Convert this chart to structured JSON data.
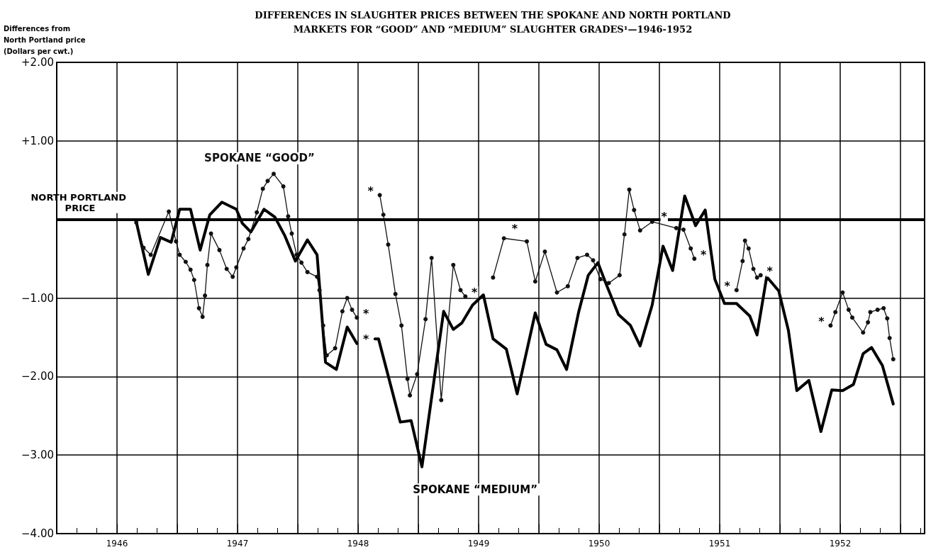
{
  "chart_data": {
    "type": "line",
    "title": "DIFFERENCES IN SLAUGHTER PRICES BETWEEN THE SPOKANE AND NORTH PORTLAND\nMARKETS FOR “GOOD” AND “MEDIUM” SLAUGHTER GRADES¹—1946-1952",
    "ylabel": "Differences from\nNorth Portland price\n(Dollars per cwt.)",
    "xlim": [
      1946,
      1953.2
    ],
    "xticks": [
      {
        "value": 1946.5,
        "label": "1946"
      },
      {
        "value": 1947,
        "label": null
      },
      {
        "value": 1947.5,
        "label": "1947"
      },
      {
        "value": 1948,
        "label": null
      },
      {
        "value": 1948.5,
        "label": "1948"
      },
      {
        "value": 1949,
        "label": null
      },
      {
        "value": 1949.5,
        "label": "1949"
      },
      {
        "value": 1950,
        "label": null
      },
      {
        "value": 1950.5,
        "label": "1950"
      },
      {
        "value": 1951,
        "label": null
      },
      {
        "value": 1951.5,
        "label": "1951"
      },
      {
        "value": 1952,
        "label": null
      },
      {
        "value": 1952.5,
        "label": "1952"
      },
      {
        "value": 1953,
        "label": null
      }
    ],
    "ylim": [
      -4,
      2
    ],
    "yticks": [
      {
        "value": -4,
        "label": "−4.00"
      },
      {
        "value": -3,
        "label": "−3.00"
      },
      {
        "value": -2,
        "label": "−2.00"
      },
      {
        "value": -1,
        "label": "−1.00"
      },
      {
        "value": 1,
        "label": "+1.00"
      },
      {
        "value": 2,
        "label": "+2.00"
      }
    ],
    "grid": true,
    "legend": false,
    "ref_lines": [
      {
        "axis": "y",
        "value": 0,
        "label": "NORTH PORTLAND PRICE",
        "color": "#000000"
      }
    ],
    "series": [
      {
        "name": "SPOKANE “GOOD”",
        "color": "#111111",
        "marker": "circle",
        "line_style": "solid",
        "x": [
          1946.66,
          1946.72,
          1946.78,
          1946.93,
          1946.99,
          1947.02,
          1947.07,
          1947.11,
          1947.14,
          1947.18,
          1947.21,
          1947.23,
          1947.25,
          1947.28,
          1947.35,
          1947.41,
          1947.46,
          1947.49,
          1947.55,
          1947.59,
          1947.66,
          1947.71,
          1947.75,
          1947.8,
          1947.88,
          1947.92,
          1947.95,
          1947.99,
          1948.03,
          1948.08,
          1948.16,
          1948.18,
          1948.21,
          1948.24,
          1948.31,
          1948.37,
          1948.41,
          1948.45,
          1948.49,
          1948.55,
          1948.68,
          1948.71,
          1948.75,
          1948.81,
          1948.86,
          1948.91,
          1948.93,
          1948.99,
          1949.06,
          1949.11,
          1949.19,
          1949.29,
          1949.35,
          1949.39,
          1949.45,
          1949.62,
          1949.71,
          1949.9,
          1949.97,
          1950.05,
          1950.15,
          1950.24,
          1950.32,
          1950.4,
          1950.45,
          1950.51,
          1950.58,
          1950.67,
          1950.71,
          1950.75,
          1950.79,
          1950.84,
          1950.94,
          1951.14,
          1951.2,
          1951.26,
          1951.29,
          1951.38,
          1951.64,
          1951.69,
          1951.71,
          1951.74,
          1951.78,
          1951.81,
          1951.84,
          1952,
          1952.42,
          1952.46,
          1952.52,
          1952.57,
          1952.6,
          1952.69,
          1952.73,
          1952.75,
          1952.81,
          1952.86,
          1952.89,
          1952.91,
          1952.94
        ],
        "values": [
          -0.04,
          -0.36,
          -0.45,
          0.1,
          -0.28,
          -0.45,
          -0.54,
          -0.64,
          -0.77,
          -1.13,
          -1.24,
          -0.97,
          -0.58,
          -0.18,
          -0.39,
          -0.63,
          -0.73,
          -0.61,
          -0.37,
          -0.25,
          0.09,
          0.39,
          0.49,
          0.58,
          0.42,
          0.04,
          -0.18,
          -0.45,
          -0.55,
          -0.67,
          -0.73,
          -0.9,
          -1.35,
          -1.73,
          -1.64,
          -1.17,
          -1,
          -1.15,
          -1.25,
          null,
          0.31,
          0.06,
          -0.32,
          -0.95,
          -1.35,
          -2.03,
          -2.24,
          -1.97,
          -1.27,
          -0.49,
          -2.3,
          -0.58,
          -0.9,
          -0.98,
          null,
          -0.74,
          -0.24,
          -0.28,
          -0.79,
          -0.41,
          -0.93,
          -0.85,
          -0.49,
          -0.45,
          -0.52,
          -0.76,
          -0.81,
          -0.71,
          -0.19,
          0.38,
          0.12,
          -0.14,
          -0.03,
          -0.11,
          -0.13,
          -0.37,
          -0.5,
          null,
          -0.9,
          -0.53,
          -0.27,
          -0.37,
          -0.63,
          -0.74,
          -0.71,
          null,
          -1.35,
          -1.18,
          -0.93,
          -1.15,
          -1.25,
          -1.44,
          -1.31,
          -1.18,
          -1.15,
          -1.13,
          -1.26,
          -1.51,
          -1.78
        ]
      },
      {
        "name": "SPOKANE “MEDIUM”",
        "color": "#000000",
        "marker": "none",
        "line_style": "solid",
        "x": [
          1946.66,
          1946.76,
          1946.86,
          1946.95,
          1947.02,
          1947.11,
          1947.19,
          1947.27,
          1947.37,
          1947.49,
          1947.54,
          1947.61,
          1947.72,
          1947.81,
          1947.89,
          1947.98,
          1948.08,
          1948.16,
          1948.23,
          1948.32,
          1948.41,
          1948.49,
          1948.55,
          1948.64,
          1948.67,
          1948.85,
          1948.94,
          1949.03,
          1949.21,
          1949.29,
          1949.36,
          1949.45,
          1949.54,
          1949.62,
          1949.73,
          1949.82,
          1949.97,
          1950.06,
          1950.15,
          1950.23,
          1950.33,
          1950.41,
          1950.49,
          1950.56,
          1950.66,
          1950.76,
          1950.84,
          1950.94,
          1951.03,
          1951.11,
          1951.21,
          1951.3,
          1951.38,
          1951.46,
          1951.54,
          1951.64,
          1951.75,
          1951.81,
          1951.89,
          1951.99,
          1952.07,
          1952.14,
          1952.24,
          1952.34,
          1952.43,
          1952.52,
          1952.61,
          1952.69,
          1952.76,
          1952.85,
          1952.94
        ],
        "values": [
          -0.03,
          -0.7,
          -0.23,
          -0.29,
          0.13,
          0.13,
          -0.39,
          0.06,
          0.22,
          0.13,
          -0.05,
          -0.16,
          0.13,
          0.03,
          -0.2,
          -0.53,
          -0.26,
          -0.45,
          -1.82,
          -1.91,
          -1.37,
          -1.58,
          null,
          -1.52,
          -1.52,
          -2.58,
          -2.56,
          -3.15,
          -1.17,
          -1.4,
          -1.32,
          -1.09,
          -0.96,
          -1.52,
          -1.65,
          -2.22,
          -1.19,
          -1.59,
          -1.66,
          -1.91,
          -1.18,
          -0.71,
          -0.55,
          -0.83,
          -1.21,
          -1.35,
          -1.61,
          -1.09,
          -0.34,
          -0.65,
          0.3,
          -0.08,
          0.12,
          -0.76,
          -1.07,
          -1.07,
          -1.23,
          -1.47,
          -0.73,
          -0.91,
          -1.41,
          -2.18,
          -2.05,
          -2.7,
          -2.17,
          -2.18,
          -2.1,
          -1.71,
          -1.63,
          -1.86,
          -2.35
        ]
      }
    ],
    "annotations": [
      {
        "text": "*",
        "x": 1948.49,
        "y": -1.25
      },
      {
        "text": "*",
        "x": 1948.49,
        "y": -1.58
      },
      {
        "text": "*",
        "x": 1948.68,
        "y": 0.31
      },
      {
        "text": "*",
        "x": 1949.39,
        "y": -0.98
      },
      {
        "text": "*",
        "x": 1949.8,
        "y": -0.26
      },
      {
        "text": "*",
        "x": 1951.04,
        "y": -0.11
      },
      {
        "text": "*",
        "x": 1951.29,
        "y": -0.5
      },
      {
        "text": "*",
        "x": 1951.64,
        "y": -0.9
      },
      {
        "text": "*",
        "x": 1951.84,
        "y": -0.71
      },
      {
        "text": "*",
        "x": 1952.42,
        "y": -1.35
      }
    ]
  }
}
